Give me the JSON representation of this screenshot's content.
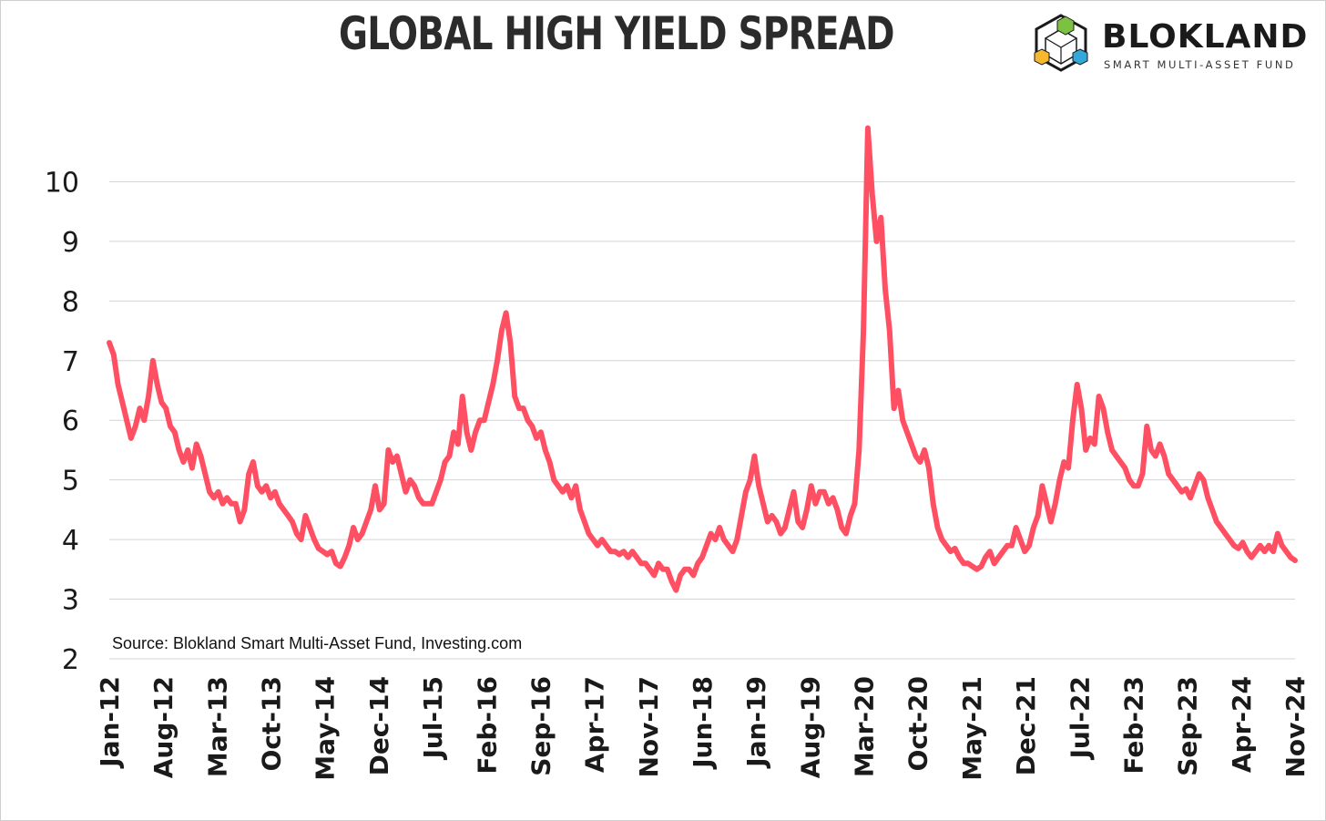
{
  "chart_data": {
    "type": "line",
    "title": "GLOBAL HIGH YIELD SPREAD",
    "xlabel": "",
    "ylabel": "",
    "ylim": [
      2,
      11
    ],
    "yticks": [
      2,
      3,
      4,
      5,
      6,
      7,
      8,
      9,
      10
    ],
    "grid": true,
    "x_tick_labels": [
      "Jan-12",
      "Aug-12",
      "Mar-13",
      "Oct-13",
      "May-14",
      "Dec-14",
      "Jul-15",
      "Feb-16",
      "Sep-16",
      "Apr-17",
      "Nov-17",
      "Jun-18",
      "Jan-19",
      "Aug-19",
      "Mar-20",
      "Oct-20",
      "May-21",
      "Dec-21",
      "Jul-22",
      "Feb-23",
      "Sep-23",
      "Apr-24",
      "Nov-24"
    ],
    "series": [
      {
        "name": "Global High Yield Spread",
        "color": "#ff4f63",
        "points": [
          [
            0,
            7.3
          ],
          [
            1,
            7.1
          ],
          [
            2,
            6.6
          ],
          [
            3,
            6.3
          ],
          [
            4,
            6.0
          ],
          [
            5,
            5.7
          ],
          [
            6,
            5.9
          ],
          [
            7,
            6.2
          ],
          [
            8,
            6.0
          ],
          [
            9,
            6.4
          ],
          [
            10,
            7.0
          ],
          [
            11,
            6.6
          ],
          [
            12,
            6.3
          ],
          [
            13,
            6.2
          ],
          [
            14,
            5.9
          ],
          [
            15,
            5.8
          ],
          [
            16,
            5.5
          ],
          [
            17,
            5.3
          ],
          [
            18,
            5.5
          ],
          [
            19,
            5.2
          ],
          [
            20,
            5.6
          ],
          [
            21,
            5.4
          ],
          [
            22,
            5.1
          ],
          [
            23,
            4.8
          ],
          [
            24,
            4.7
          ],
          [
            25,
            4.8
          ],
          [
            26,
            4.6
          ],
          [
            27,
            4.7
          ],
          [
            28,
            4.6
          ],
          [
            29,
            4.6
          ],
          [
            30,
            4.3
          ],
          [
            31,
            4.5
          ],
          [
            32,
            5.1
          ],
          [
            33,
            5.3
          ],
          [
            34,
            4.9
          ],
          [
            35,
            4.8
          ],
          [
            36,
            4.9
          ],
          [
            37,
            4.7
          ],
          [
            38,
            4.8
          ],
          [
            39,
            4.6
          ],
          [
            40,
            4.5
          ],
          [
            41,
            4.4
          ],
          [
            42,
            4.3
          ],
          [
            43,
            4.1
          ],
          [
            44,
            4.0
          ],
          [
            45,
            4.4
          ],
          [
            46,
            4.2
          ],
          [
            47,
            4.0
          ],
          [
            48,
            3.85
          ],
          [
            49,
            3.8
          ],
          [
            50,
            3.75
          ],
          [
            51,
            3.8
          ],
          [
            52,
            3.6
          ],
          [
            53,
            3.55
          ],
          [
            54,
            3.7
          ],
          [
            55,
            3.9
          ],
          [
            56,
            4.2
          ],
          [
            57,
            4.0
          ],
          [
            58,
            4.1
          ],
          [
            59,
            4.3
          ],
          [
            60,
            4.5
          ],
          [
            61,
            4.9
          ],
          [
            62,
            4.5
          ],
          [
            63,
            4.6
          ],
          [
            64,
            5.5
          ],
          [
            65,
            5.3
          ],
          [
            66,
            5.4
          ],
          [
            67,
            5.1
          ],
          [
            68,
            4.8
          ],
          [
            69,
            5.0
          ],
          [
            70,
            4.9
          ],
          [
            71,
            4.7
          ],
          [
            72,
            4.6
          ],
          [
            73,
            4.6
          ],
          [
            74,
            4.6
          ],
          [
            75,
            4.8
          ],
          [
            76,
            5.0
          ],
          [
            77,
            5.3
          ],
          [
            78,
            5.4
          ],
          [
            79,
            5.8
          ],
          [
            80,
            5.6
          ],
          [
            81,
            6.4
          ],
          [
            82,
            5.8
          ],
          [
            83,
            5.5
          ],
          [
            84,
            5.8
          ],
          [
            85,
            6.0
          ],
          [
            86,
            6.0
          ],
          [
            87,
            6.3
          ],
          [
            88,
            6.6
          ],
          [
            89,
            7.0
          ],
          [
            90,
            7.5
          ],
          [
            91,
            7.8
          ],
          [
            92,
            7.3
          ],
          [
            93,
            6.4
          ],
          [
            94,
            6.2
          ],
          [
            95,
            6.2
          ],
          [
            96,
            6.0
          ],
          [
            97,
            5.9
          ],
          [
            98,
            5.7
          ],
          [
            99,
            5.8
          ],
          [
            100,
            5.5
          ],
          [
            101,
            5.3
          ],
          [
            102,
            5.0
          ],
          [
            103,
            4.9
          ],
          [
            104,
            4.8
          ],
          [
            105,
            4.9
          ],
          [
            106,
            4.7
          ],
          [
            107,
            4.9
          ],
          [
            108,
            4.5
          ],
          [
            109,
            4.3
          ],
          [
            110,
            4.1
          ],
          [
            111,
            4.0
          ],
          [
            112,
            3.9
          ],
          [
            113,
            4.0
          ],
          [
            114,
            3.9
          ],
          [
            115,
            3.8
          ],
          [
            116,
            3.8
          ],
          [
            117,
            3.75
          ],
          [
            118,
            3.8
          ],
          [
            119,
            3.7
          ],
          [
            120,
            3.8
          ],
          [
            121,
            3.7
          ],
          [
            122,
            3.6
          ],
          [
            123,
            3.6
          ],
          [
            124,
            3.5
          ],
          [
            125,
            3.4
          ],
          [
            126,
            3.6
          ],
          [
            127,
            3.5
          ],
          [
            128,
            3.5
          ],
          [
            129,
            3.3
          ],
          [
            130,
            3.15
          ],
          [
            131,
            3.4
          ],
          [
            132,
            3.5
          ],
          [
            133,
            3.5
          ],
          [
            134,
            3.4
          ],
          [
            135,
            3.6
          ],
          [
            136,
            3.7
          ],
          [
            137,
            3.9
          ],
          [
            138,
            4.1
          ],
          [
            139,
            4.0
          ],
          [
            140,
            4.2
          ],
          [
            141,
            4.0
          ],
          [
            142,
            3.9
          ],
          [
            143,
            3.8
          ],
          [
            144,
            4.0
          ],
          [
            145,
            4.4
          ],
          [
            146,
            4.8
          ],
          [
            147,
            5.0
          ],
          [
            148,
            5.4
          ],
          [
            149,
            4.9
          ],
          [
            150,
            4.6
          ],
          [
            151,
            4.3
          ],
          [
            152,
            4.4
          ],
          [
            153,
            4.3
          ],
          [
            154,
            4.1
          ],
          [
            155,
            4.2
          ],
          [
            156,
            4.5
          ],
          [
            157,
            4.8
          ],
          [
            158,
            4.3
          ],
          [
            159,
            4.2
          ],
          [
            160,
            4.5
          ],
          [
            161,
            4.9
          ],
          [
            162,
            4.6
          ],
          [
            163,
            4.8
          ],
          [
            164,
            4.8
          ],
          [
            165,
            4.6
          ],
          [
            166,
            4.7
          ],
          [
            167,
            4.5
          ],
          [
            168,
            4.2
          ],
          [
            169,
            4.1
          ],
          [
            170,
            4.4
          ],
          [
            171,
            4.6
          ],
          [
            172,
            5.5
          ],
          [
            173,
            7.5
          ],
          [
            174,
            10.9
          ],
          [
            175,
            9.8
          ],
          [
            176,
            9.0
          ],
          [
            177,
            9.4
          ],
          [
            178,
            8.2
          ],
          [
            179,
            7.5
          ],
          [
            180,
            6.2
          ],
          [
            181,
            6.5
          ],
          [
            182,
            6.0
          ],
          [
            183,
            5.8
          ],
          [
            184,
            5.6
          ],
          [
            185,
            5.4
          ],
          [
            186,
            5.3
          ],
          [
            187,
            5.5
          ],
          [
            188,
            5.2
          ],
          [
            189,
            4.6
          ],
          [
            190,
            4.2
          ],
          [
            191,
            4.0
          ],
          [
            192,
            3.9
          ],
          [
            193,
            3.8
          ],
          [
            194,
            3.85
          ],
          [
            195,
            3.7
          ],
          [
            196,
            3.6
          ],
          [
            197,
            3.6
          ],
          [
            198,
            3.55
          ],
          [
            199,
            3.5
          ],
          [
            200,
            3.55
          ],
          [
            201,
            3.7
          ],
          [
            202,
            3.8
          ],
          [
            203,
            3.6
          ],
          [
            204,
            3.7
          ],
          [
            205,
            3.8
          ],
          [
            206,
            3.9
          ],
          [
            207,
            3.9
          ],
          [
            208,
            4.2
          ],
          [
            209,
            4.0
          ],
          [
            210,
            3.8
          ],
          [
            211,
            3.9
          ],
          [
            212,
            4.2
          ],
          [
            213,
            4.4
          ],
          [
            214,
            4.9
          ],
          [
            215,
            4.6
          ],
          [
            216,
            4.3
          ],
          [
            217,
            4.6
          ],
          [
            218,
            5.0
          ],
          [
            219,
            5.3
          ],
          [
            220,
            5.2
          ],
          [
            221,
            6.0
          ],
          [
            222,
            6.6
          ],
          [
            223,
            6.2
          ],
          [
            224,
            5.5
          ],
          [
            225,
            5.7
          ],
          [
            226,
            5.6
          ],
          [
            227,
            6.4
          ],
          [
            228,
            6.2
          ],
          [
            229,
            5.8
          ],
          [
            230,
            5.5
          ],
          [
            231,
            5.4
          ],
          [
            232,
            5.3
          ],
          [
            233,
            5.2
          ],
          [
            234,
            5.0
          ],
          [
            235,
            4.9
          ],
          [
            236,
            4.9
          ],
          [
            237,
            5.1
          ],
          [
            238,
            5.9
          ],
          [
            239,
            5.5
          ],
          [
            240,
            5.4
          ],
          [
            241,
            5.6
          ],
          [
            242,
            5.4
          ],
          [
            243,
            5.1
          ],
          [
            244,
            5.0
          ],
          [
            245,
            4.9
          ],
          [
            246,
            4.8
          ],
          [
            247,
            4.85
          ],
          [
            248,
            4.7
          ],
          [
            249,
            4.9
          ],
          [
            250,
            5.1
          ],
          [
            251,
            5.0
          ],
          [
            252,
            4.7
          ],
          [
            253,
            4.5
          ],
          [
            254,
            4.3
          ],
          [
            255,
            4.2
          ],
          [
            256,
            4.1
          ],
          [
            257,
            4.0
          ],
          [
            258,
            3.9
          ],
          [
            259,
            3.85
          ],
          [
            260,
            3.95
          ],
          [
            261,
            3.8
          ],
          [
            262,
            3.7
          ],
          [
            263,
            3.8
          ],
          [
            264,
            3.9
          ],
          [
            265,
            3.8
          ],
          [
            266,
            3.9
          ],
          [
            267,
            3.8
          ],
          [
            268,
            4.1
          ],
          [
            269,
            3.9
          ],
          [
            270,
            3.8
          ],
          [
            271,
            3.7
          ],
          [
            272,
            3.65
          ]
        ]
      }
    ],
    "annotation": "Source: Blokland Smart Multi-Asset Fund, Investing.com"
  },
  "brand": {
    "name": "BLOKLAND",
    "subtitle": "SMART MULTI-ASSET FUND"
  }
}
